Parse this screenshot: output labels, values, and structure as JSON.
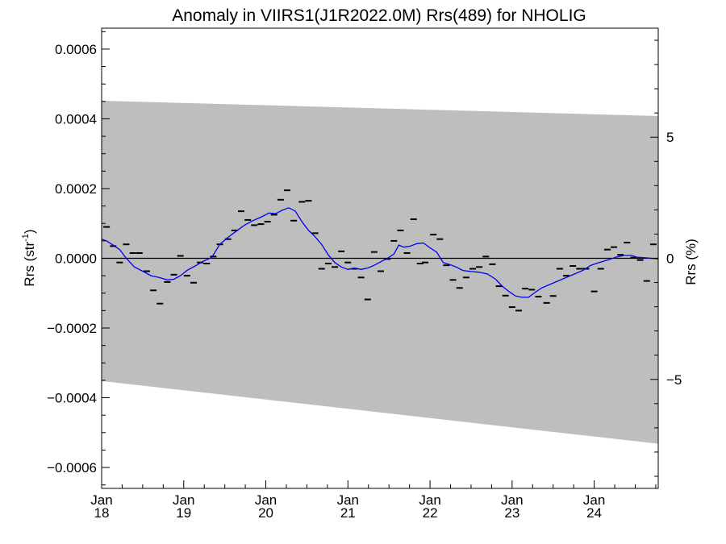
{
  "chart_data": {
    "type": "scatter",
    "title": "Anomaly in VIIRS1(J1R2022.0M) Rrs(489) for NHOLIG",
    "ylabel": "Rrs (str",
    "ylabel_sup": "-1",
    "ylabel_close": ")",
    "y2label": "Rrs (%)",
    "xlim": [
      2018.0,
      2024.78
    ],
    "ylim": [
      -0.00066,
      0.00066
    ],
    "y2lim": [
      -9.5,
      9.5
    ],
    "y_ticks": [
      {
        "value": 0.0006,
        "label": "0.0006"
      },
      {
        "value": 0.0004,
        "label": "0.0004"
      },
      {
        "value": 0.0002,
        "label": "0.0002"
      },
      {
        "value": 0.0,
        "label": "0.0000"
      },
      {
        "value": -0.0002,
        "label": "−0.0002"
      },
      {
        "value": -0.0004,
        "label": "−0.0004"
      },
      {
        "value": -0.0006,
        "label": "−0.0006"
      }
    ],
    "y2_ticks": [
      {
        "value": 5,
        "label": "5"
      },
      {
        "value": 0,
        "label": "0"
      },
      {
        "value": -5,
        "label": "−5"
      }
    ],
    "x_ticks": [
      {
        "value": 2018,
        "month": "Jan",
        "year": "18"
      },
      {
        "value": 2019,
        "month": "Jan",
        "year": "19"
      },
      {
        "value": 2020,
        "month": "Jan",
        "year": "20"
      },
      {
        "value": 2021,
        "month": "Jan",
        "year": "21"
      },
      {
        "value": 2022,
        "month": "Jan",
        "year": "22"
      },
      {
        "value": 2023,
        "month": "Jan",
        "year": "23"
      },
      {
        "value": 2024,
        "month": "Jan",
        "year": "24"
      }
    ],
    "band": {
      "upper": [
        [
          2018.0,
          0.000452
        ],
        [
          2024.78,
          0.000408
        ]
      ],
      "lower": [
        [
          2018.0,
          -0.000352
        ],
        [
          2024.78,
          -0.000532
        ]
      ]
    },
    "colors": {
      "band": "#bebebe",
      "smooth": "#0000ee",
      "points": "#000000"
    },
    "points": [
      [
        2018.06,
        9e-05
      ],
      [
        2018.14,
        3.5e-05
      ],
      [
        2018.22,
        -1.2e-05
      ],
      [
        2018.3,
        4e-05
      ],
      [
        2018.38,
        1.5e-05
      ],
      [
        2018.46,
        1.5e-05
      ],
      [
        2018.55,
        -3.7e-05
      ],
      [
        2018.63,
        -9.2e-05
      ],
      [
        2018.71,
        -0.00013
      ],
      [
        2018.8,
        -6.8e-05
      ],
      [
        2018.88,
        -4.7e-05
      ],
      [
        2018.96,
        7e-06
      ],
      [
        2019.04,
        -5e-05
      ],
      [
        2019.12,
        -7e-05
      ],
      [
        2019.2,
        -1.2e-05
      ],
      [
        2019.28,
        -1.5e-05
      ],
      [
        2019.36,
        5e-06
      ],
      [
        2019.44,
        4e-05
      ],
      [
        2019.54,
        5.5e-05
      ],
      [
        2019.62,
        8e-05
      ],
      [
        2019.7,
        0.000135
      ],
      [
        2019.78,
        0.00011
      ],
      [
        2019.86,
        9.5e-05
      ],
      [
        2019.94,
        9.8e-05
      ],
      [
        2020.02,
        0.000105
      ],
      [
        2020.1,
        0.000125
      ],
      [
        2020.18,
        0.000168
      ],
      [
        2020.26,
        0.000195
      ],
      [
        2020.34,
        0.000108
      ],
      [
        2020.44,
        0.000162
      ],
      [
        2020.52,
        0.000165
      ],
      [
        2020.6,
        7.2e-05
      ],
      [
        2020.68,
        -3e-05
      ],
      [
        2020.76,
        -1.5e-05
      ],
      [
        2020.84,
        -2.5e-05
      ],
      [
        2020.92,
        2e-05
      ],
      [
        2021.0,
        -1.2e-05
      ],
      [
        2021.08,
        -3e-05
      ],
      [
        2021.16,
        -5.5e-05
      ],
      [
        2021.24,
        -0.000118
      ],
      [
        2021.32,
        1.8e-05
      ],
      [
        2021.4,
        -3.7e-05
      ],
      [
        2021.48,
        -2e-06
      ],
      [
        2021.56,
        5e-05
      ],
      [
        2021.64,
        8e-05
      ],
      [
        2021.72,
        1.5e-05
      ],
      [
        2021.8,
        0.000112
      ],
      [
        2021.88,
        -1.5e-05
      ],
      [
        2021.94,
        -1.2e-05
      ],
      [
        2022.04,
        6.8e-05
      ],
      [
        2022.12,
        5.5e-05
      ],
      [
        2022.2,
        -2e-05
      ],
      [
        2022.28,
        -6.2e-05
      ],
      [
        2022.36,
        -8.5e-05
      ],
      [
        2022.44,
        -5.5e-05
      ],
      [
        2022.52,
        -3e-05
      ],
      [
        2022.6,
        -2.5e-05
      ],
      [
        2022.68,
        5e-06
      ],
      [
        2022.76,
        -1.7e-05
      ],
      [
        2022.84,
        -8e-05
      ],
      [
        2022.92,
        -0.000107
      ],
      [
        2023.0,
        -0.00014
      ],
      [
        2023.08,
        -0.00015
      ],
      [
        2023.16,
        -8.7e-05
      ],
      [
        2023.24,
        -9e-05
      ],
      [
        2023.32,
        -0.00011
      ],
      [
        2023.42,
        -0.000128
      ],
      [
        2023.5,
        -0.000108
      ],
      [
        2023.58,
        -3e-05
      ],
      [
        2023.66,
        -5e-05
      ],
      [
        2023.74,
        -2.2e-05
      ],
      [
        2023.82,
        -3e-05
      ],
      [
        2023.9,
        -3e-05
      ],
      [
        2024.0,
        -9.5e-05
      ],
      [
        2024.08,
        -3e-05
      ],
      [
        2024.16,
        2.5e-05
      ],
      [
        2024.24,
        3.2e-05
      ],
      [
        2024.32,
        1e-05
      ],
      [
        2024.4,
        4.5e-05
      ],
      [
        2024.48,
        2e-06
      ],
      [
        2024.56,
        -5e-06
      ],
      [
        2024.64,
        -6.5e-05
      ],
      [
        2024.72,
        4e-05
      ]
    ],
    "smooth": [
      [
        2018.0,
        5.5e-05
      ],
      [
        2018.06,
        5e-05
      ],
      [
        2018.14,
        3.8e-05
      ],
      [
        2018.22,
        2.5e-05
      ],
      [
        2018.3,
        0.0
      ],
      [
        2018.4,
        -2.5e-05
      ],
      [
        2018.5,
        -3.7e-05
      ],
      [
        2018.6,
        -5e-05
      ],
      [
        2018.7,
        -5.5e-05
      ],
      [
        2018.8,
        -6.2e-05
      ],
      [
        2018.88,
        -6e-05
      ],
      [
        2018.96,
        -5e-05
      ],
      [
        2019.04,
        -3.5e-05
      ],
      [
        2019.14,
        -2.2e-05
      ],
      [
        2019.24,
        -8e-06
      ],
      [
        2019.34,
        2e-06
      ],
      [
        2019.44,
        4e-05
      ],
      [
        2019.54,
        6e-05
      ],
      [
        2019.64,
        7.8e-05
      ],
      [
        2019.74,
        9.5e-05
      ],
      [
        2019.84,
        0.000108
      ],
      [
        2019.94,
        0.000118
      ],
      [
        2020.04,
        0.00013
      ],
      [
        2020.12,
        0.000128
      ],
      [
        2020.2,
        0.000138
      ],
      [
        2020.28,
        0.000145
      ],
      [
        2020.36,
        0.000135
      ],
      [
        2020.44,
        0.000105
      ],
      [
        2020.52,
        8e-05
      ],
      [
        2020.6,
        6.2e-05
      ],
      [
        2020.68,
        4e-05
      ],
      [
        2020.76,
        1e-05
      ],
      [
        2020.84,
        -1.2e-05
      ],
      [
        2020.92,
        -2.5e-05
      ],
      [
        2021.0,
        -3.2e-05
      ],
      [
        2021.08,
        -2.8e-05
      ],
      [
        2021.16,
        -3.2e-05
      ],
      [
        2021.24,
        -2.8e-05
      ],
      [
        2021.32,
        -2e-05
      ],
      [
        2021.4,
        -1e-05
      ],
      [
        2021.48,
        0.0
      ],
      [
        2021.56,
        1.2e-05
      ],
      [
        2021.62,
        3.8e-05
      ],
      [
        2021.68,
        3.2e-05
      ],
      [
        2021.76,
        3.5e-05
      ],
      [
        2021.84,
        4.2e-05
      ],
      [
        2021.92,
        4.4e-05
      ],
      [
        2022.0,
        3e-05
      ],
      [
        2022.08,
        1.8e-05
      ],
      [
        2022.16,
        -1.2e-05
      ],
      [
        2022.24,
        -1.8e-05
      ],
      [
        2022.32,
        -2.5e-05
      ],
      [
        2022.4,
        -3.5e-05
      ],
      [
        2022.5,
        -3.8e-05
      ],
      [
        2022.6,
        -4e-05
      ],
      [
        2022.7,
        -4.5e-05
      ],
      [
        2022.8,
        -6e-05
      ],
      [
        2022.88,
        -8e-05
      ],
      [
        2022.96,
        -9.5e-05
      ],
      [
        2023.04,
        -0.000108
      ],
      [
        2023.12,
        -0.000112
      ],
      [
        2023.2,
        -0.000112
      ],
      [
        2023.28,
        -9.8e-05
      ],
      [
        2023.36,
        -8.5e-05
      ],
      [
        2023.46,
        -7.5e-05
      ],
      [
        2023.56,
        -6.5e-05
      ],
      [
        2023.66,
        -5.5e-05
      ],
      [
        2023.76,
        -4.5e-05
      ],
      [
        2023.86,
        -3.5e-05
      ],
      [
        2023.96,
        -2e-05
      ],
      [
        2024.06,
        -1.2e-05
      ],
      [
        2024.16,
        -5e-06
      ],
      [
        2024.26,
        3e-06
      ],
      [
        2024.36,
        8e-06
      ],
      [
        2024.46,
        8e-06
      ],
      [
        2024.52,
        3e-06
      ],
      [
        2024.6,
        2e-06
      ],
      [
        2024.7,
        0.0
      ],
      [
        2024.78,
        -2e-06
      ]
    ]
  }
}
